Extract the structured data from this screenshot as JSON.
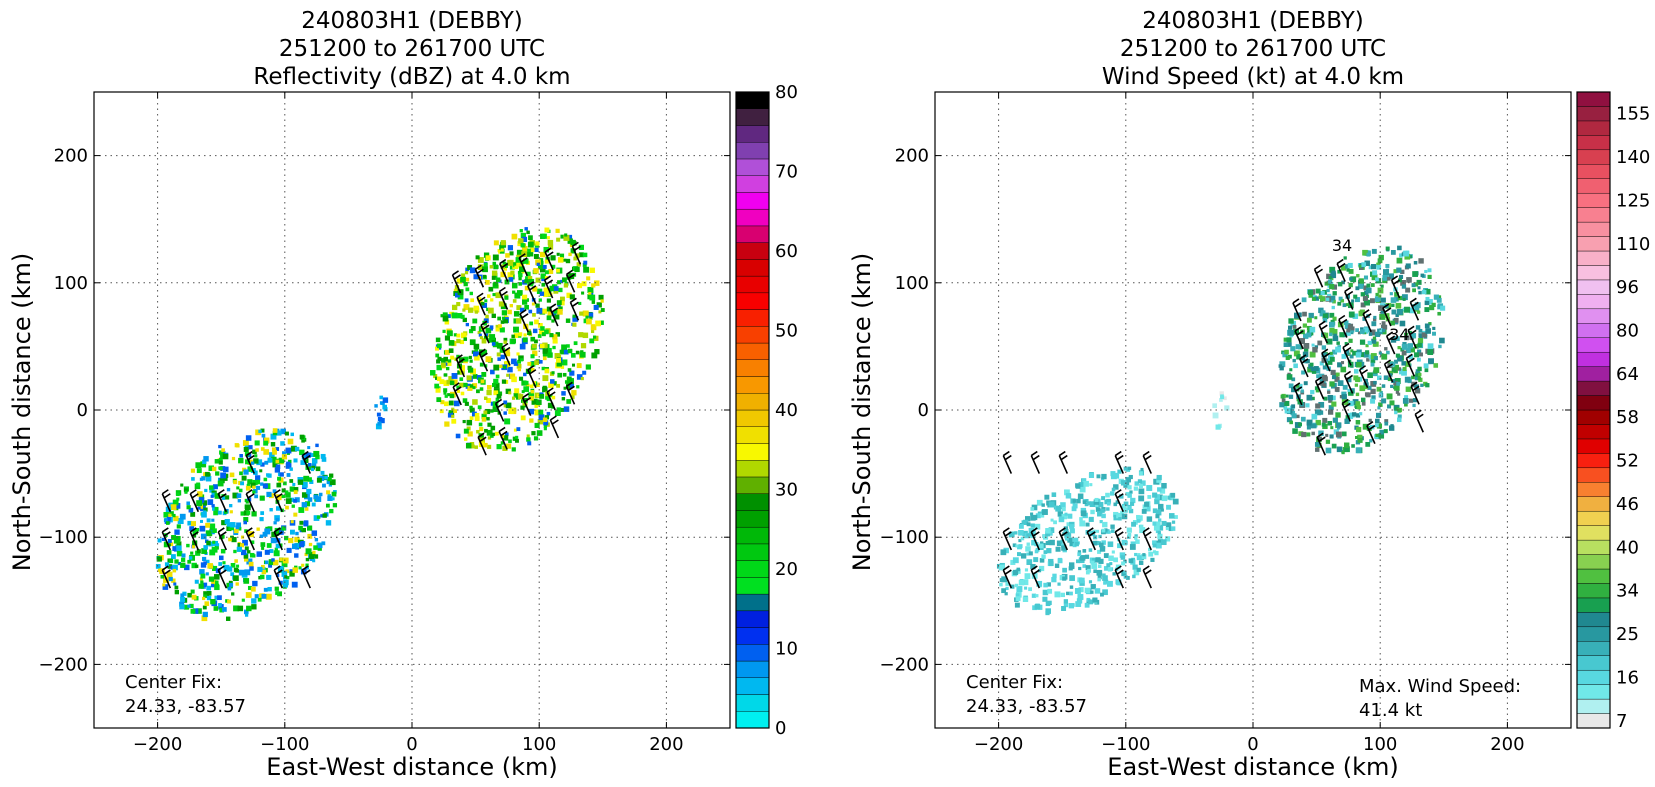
{
  "chart_data": [
    {
      "type": "heatmap",
      "title_lines": [
        "240803H1 (DEBBY)",
        "251200 to 261700 UTC",
        "Reflectivity (dBZ) at 4.0 km"
      ],
      "xlabel": "East-West distance (km)",
      "ylabel": "North-South distance (km)",
      "xlim": [
        -250,
        250
      ],
      "ylim": [
        -250,
        250
      ],
      "xticks": [
        -200,
        -100,
        0,
        100,
        200
      ],
      "yticks": [
        -200,
        -100,
        0,
        100,
        200
      ],
      "grid": true,
      "annotation_lines": [
        "Center Fix:",
        "24.33, -83.57"
      ],
      "colorbar": {
        "min": 0,
        "max": 80,
        "step": 2.5,
        "tick_values": [
          0,
          10,
          20,
          30,
          40,
          50,
          60,
          70,
          80
        ],
        "colors": [
          "#00f0f0",
          "#00d8e8",
          "#00b8f0",
          "#0098f0",
          "#0060f0",
          "#0030f0",
          "#0020e0",
          "#00708a",
          "#00e020",
          "#00d818",
          "#00c810",
          "#00b808",
          "#00a000",
          "#009000",
          "#60b000",
          "#b0d800",
          "#f8f800",
          "#f0e000",
          "#f0c800",
          "#f0b000",
          "#f89800",
          "#f88000",
          "#f86000",
          "#f84000",
          "#f82000",
          "#f80000",
          "#e80000",
          "#d80000",
          "#c80010",
          "#d80070",
          "#f000c0",
          "#f000f0",
          "#d040e0",
          "#b050d8",
          "#8040b0",
          "#602880",
          "#402040",
          "#000000"
        ]
      },
      "echo_clusters": [
        {
          "name": "northeast-band",
          "x": [
            15,
            150
          ],
          "y": [
            -40,
            150
          ],
          "dominant": "green-yellow"
        },
        {
          "name": "southwest-band",
          "x": [
            -200,
            -60
          ],
          "y": [
            -170,
            -10
          ],
          "dominant": "green-blue"
        },
        {
          "name": "central-cell",
          "x": [
            -32,
            -18
          ],
          "y": [
            -15,
            15
          ],
          "dominant": "blue"
        }
      ]
    },
    {
      "type": "heatmap",
      "title_lines": [
        "240803H1 (DEBBY)",
        "251200 to 261700 UTC",
        "Wind Speed (kt) at 4.0 km"
      ],
      "xlabel": "East-West distance (km)",
      "ylabel": "North-South distance (km)",
      "xlim": [
        -250,
        250
      ],
      "ylim": [
        -250,
        250
      ],
      "xticks": [
        -200,
        -100,
        0,
        100,
        200
      ],
      "yticks": [
        -200,
        -100,
        0,
        100,
        200
      ],
      "grid": true,
      "annotation_lines": [
        "Center Fix:",
        "24.33, -83.57"
      ],
      "max_wind_lines": [
        "Max. Wind Speed:",
        "41.4 kt"
      ],
      "max_wind_kt": 41.4,
      "contour_labels": [
        {
          "text": "34",
          "x": 70,
          "y": 125
        },
        {
          "text": "34",
          "x": 115,
          "y": 55
        }
      ],
      "colorbar": {
        "tick_labels": [
          "7",
          "16",
          "25",
          "34",
          "40",
          "46",
          "52",
          "58",
          "64",
          "80",
          "96",
          "110",
          "125",
          "140",
          "155"
        ],
        "tick_bin_index": [
          0,
          3,
          6,
          9,
          12,
          15,
          18,
          21,
          24,
          27,
          30,
          33,
          36,
          39,
          42
        ],
        "colors": [
          "#e8e8e8",
          "#b0f0f0",
          "#70e8e8",
          "#58d8e0",
          "#48c8d0",
          "#38b0b8",
          "#2898a0",
          "#208890",
          "#18a050",
          "#30b040",
          "#50c040",
          "#88d050",
          "#b8e060",
          "#e0e060",
          "#f0d050",
          "#f0b040",
          "#f88030",
          "#f85020",
          "#f82010",
          "#e00000",
          "#c00000",
          "#a00000",
          "#800010",
          "#801040",
          "#a020a0",
          "#c030e0",
          "#d050f0",
          "#d070f0",
          "#e090f0",
          "#f0b0f0",
          "#f0c0f0",
          "#f8c0e0",
          "#f8b0c8",
          "#f8a0b0",
          "#f890a0",
          "#f88090",
          "#f87080",
          "#f06070",
          "#e85060",
          "#d84050",
          "#c83048",
          "#b02840",
          "#982040",
          "#901040"
        ]
      },
      "wind_clusters": [
        {
          "name": "northeast-band",
          "x": [
            20,
            150
          ],
          "y": [
            -40,
            135
          ],
          "dominant": "teal-green"
        },
        {
          "name": "southwest-band",
          "x": [
            -200,
            -60
          ],
          "y": [
            -160,
            -45
          ],
          "dominant": "cyan"
        },
        {
          "name": "central-cell",
          "x": [
            -32,
            -20
          ],
          "y": [
            -15,
            15
          ],
          "dominant": "light-cyan"
        }
      ]
    }
  ]
}
